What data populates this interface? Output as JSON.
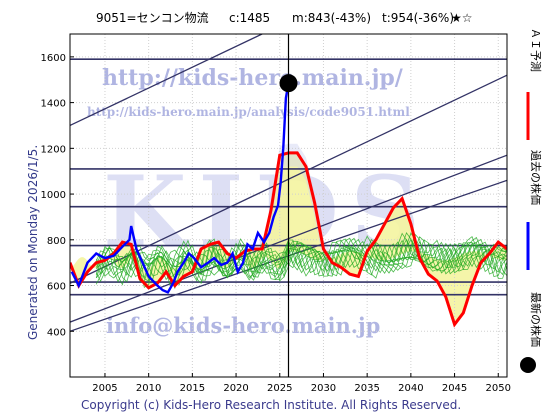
{
  "header": {
    "title": "9051=センコン物流",
    "current": "c:1485",
    "min": "m:843(-43%)",
    "target": "t:954(-36%)",
    "stars": "★☆"
  },
  "side_label": "Generated on Monday 2026/1/5.",
  "footer": "Copyright (c) Kids-Hero Research Institute. All Rights Reserved.",
  "watermarks": {
    "url": "http://kids-hero.main.jp/",
    "analysis_url": "http://kids-hero.main.jp/analysis/code9051.html",
    "logo": "KIDS",
    "email": "info@kids-hero.main.jp"
  },
  "legend": [
    {
      "label": "ＡＩ予測",
      "color": "#ff0000",
      "marker": "line"
    },
    {
      "label": "過去の株価",
      "color": "#0000ff",
      "marker": "line"
    },
    {
      "label": "最新の株価",
      "color": "#000000",
      "marker": "dot"
    }
  ],
  "chart_data": {
    "type": "line",
    "xlim": [
      2001,
      2051
    ],
    "ylim": [
      200,
      1700
    ],
    "x_ticks": [
      2005,
      2010,
      2015,
      2020,
      2025,
      2030,
      2035,
      2040,
      2045,
      2050
    ],
    "y_ticks": [
      400,
      600,
      800,
      1000,
      1200,
      1400,
      1600
    ],
    "grid": true,
    "colors": {
      "past": "#0000ff",
      "ai": "#ff0000",
      "sim": "#22aa22",
      "band": "#f4f4a0",
      "bandBlue": "#ccd0f0",
      "trend": "#333366"
    },
    "latest_point": {
      "x": 2026.0,
      "y": 1485
    },
    "reference_lines": [
      1590,
      1110,
      945,
      775,
      615,
      560
    ],
    "trend_lines": [
      {
        "x": [
          2001,
          2051
        ],
        "y": [
          1300,
          2210
        ]
      },
      {
        "x": [
          2001,
          2051
        ],
        "y": [
          610,
          1520
        ]
      },
      {
        "x": [
          2001,
          2051
        ],
        "y": [
          440,
          1170
        ]
      },
      {
        "x": [
          2001,
          2051
        ],
        "y": [
          400,
          1060
        ]
      }
    ],
    "series": [
      {
        "name": "過去の株価",
        "x": [
          2001.2,
          2002,
          2003,
          2004,
          2005,
          2006,
          2007,
          2007.8,
          2008,
          2008.6,
          2009.3,
          2010,
          2011,
          2011.6,
          2012.2,
          2012.8,
          2013.3,
          2014,
          2014.6,
          2015.2,
          2016,
          2016.8,
          2017.5,
          2018.3,
          2019,
          2019.6,
          2020.2,
          2020.8,
          2021.3,
          2021.9,
          2022.5,
          2023.2,
          2023.8,
          2024.3,
          2024.8,
          2025.1,
          2025.4,
          2025.7,
          2026.0
        ],
        "y": [
          660,
          600,
          700,
          740,
          720,
          730,
          770,
          800,
          860,
          760,
          700,
          640,
          600,
          580,
          570,
          610,
          660,
          700,
          740,
          720,
          680,
          700,
          720,
          690,
          700,
          740,
          660,
          700,
          780,
          760,
          830,
          790,
          830,
          900,
          950,
          1050,
          1200,
          1420,
          1485
        ]
      },
      {
        "name": "ＡＩ予測",
        "x": [
          2001,
          2002,
          2003,
          2004,
          2005,
          2006,
          2007,
          2008,
          2009,
          2010,
          2011,
          2012,
          2013,
          2014,
          2015,
          2016,
          2017,
          2018,
          2019,
          2020,
          2021,
          2022,
          2023,
          2024,
          2025,
          2026,
          2027,
          2028,
          2029,
          2030,
          2031,
          2032,
          2033,
          2034,
          2035,
          2036,
          2037,
          2038,
          2039,
          2040,
          2041,
          2042,
          2043,
          2044,
          2045,
          2046,
          2047,
          2048,
          2049,
          2050,
          2051
        ],
        "y": [
          700,
          600,
          660,
          700,
          710,
          740,
          790,
          780,
          630,
          590,
          610,
          660,
          600,
          640,
          660,
          760,
          780,
          790,
          740,
          720,
          750,
          760,
          760,
          930,
          1170,
          1180,
          1180,
          1120,
          960,
          760,
          700,
          680,
          650,
          640,
          750,
          800,
          870,
          940,
          980,
          870,
          720,
          650,
          620,
          550,
          430,
          480,
          600,
          700,
          740,
          790,
          760
        ]
      }
    ]
  }
}
